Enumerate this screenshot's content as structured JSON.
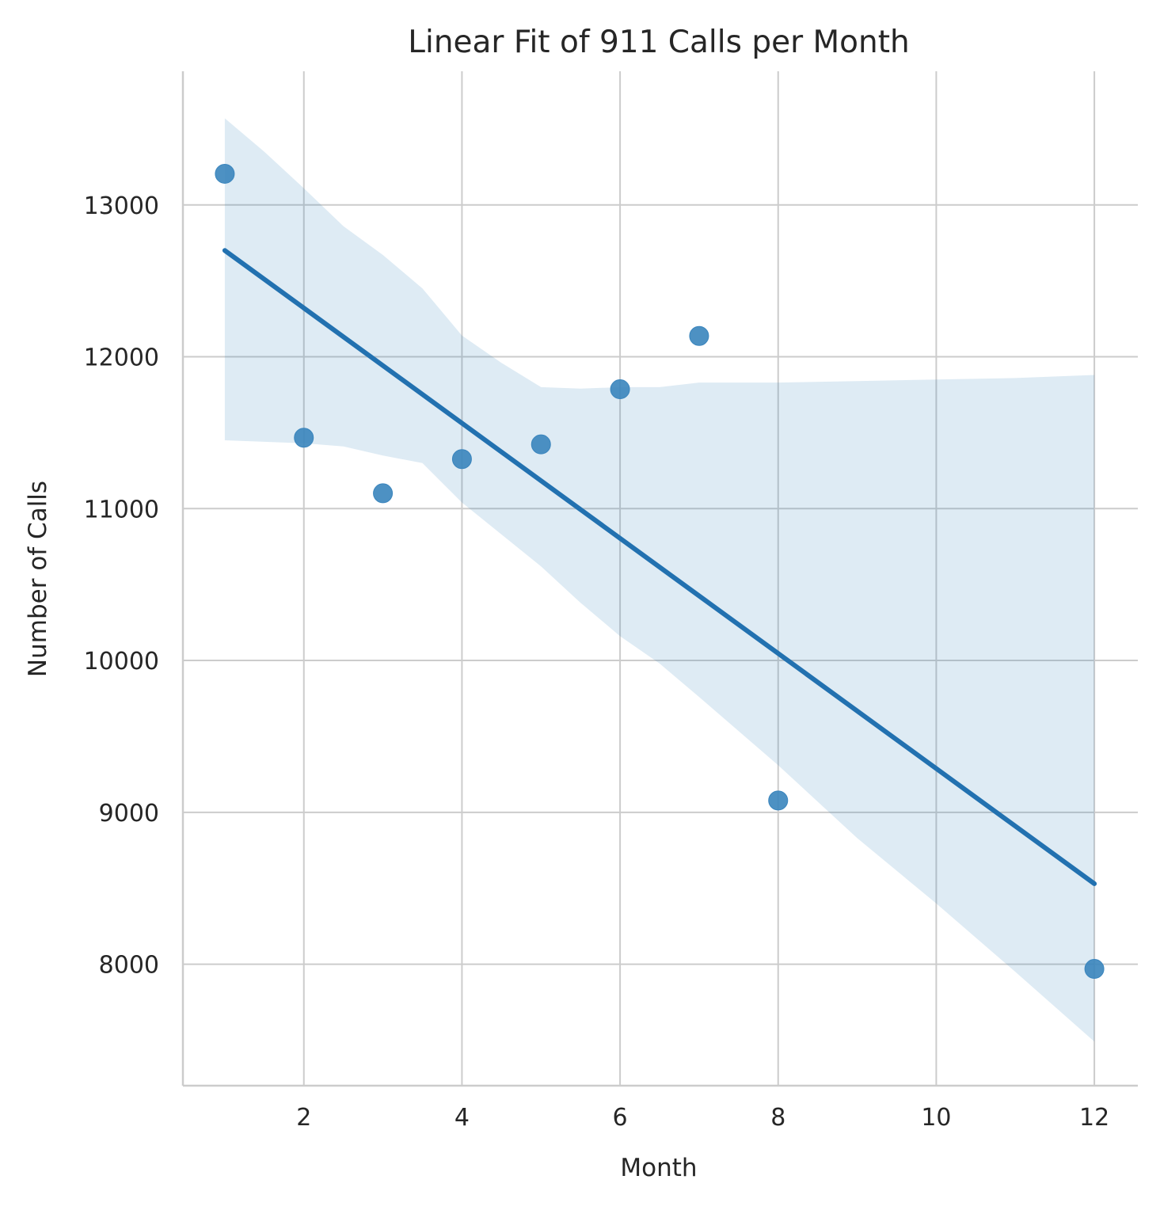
{
  "chart_data": {
    "type": "scatter",
    "title": "Linear Fit of 911 Calls per Month",
    "xlabel": "Month",
    "ylabel": "Number of Calls",
    "xlim": [
      0.47,
      12.55
    ],
    "ylim": [
      7200,
      13880
    ],
    "x_ticks": [
      2,
      4,
      6,
      8,
      10,
      12
    ],
    "y_ticks": [
      8000,
      9000,
      10000,
      11000,
      12000,
      13000
    ],
    "grid": true,
    "legend": "none",
    "series": [
      {
        "x": [
          1,
          2,
          3,
          4,
          5,
          6,
          7,
          8,
          12
        ],
        "y": [
          13205,
          11467,
          11101,
          11326,
          11423,
          11786,
          12137,
          9078,
          7969
        ]
      }
    ],
    "regression_line": {
      "x": [
        1,
        12
      ],
      "y": [
        12700,
        8530
      ]
    },
    "confidence_band": {
      "x": [
        1,
        1.5,
        2,
        2.5,
        3,
        3.5,
        4,
        4.5,
        5,
        5.5,
        6,
        6.5,
        7,
        8,
        9,
        10,
        11,
        12
      ],
      "upper": [
        13570,
        13350,
        13110,
        12860,
        12670,
        12450,
        12140,
        11960,
        11800,
        11790,
        11800,
        11800,
        11830,
        11830,
        11840,
        11850,
        11860,
        11880
      ],
      "lower": [
        11450,
        11440,
        11430,
        11410,
        11350,
        11300,
        11040,
        10830,
        10620,
        10380,
        10160,
        9980,
        9760,
        9310,
        8830,
        8400,
        7950,
        7490
      ]
    },
    "colors": {
      "points": "#3a85bd",
      "line": "#2271b0",
      "band": "#1f77b4",
      "grid": "#cccccc"
    }
  }
}
